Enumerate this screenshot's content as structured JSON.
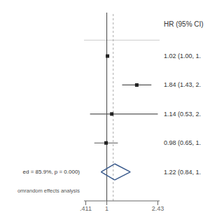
{
  "chart_data": {
    "type": "forest",
    "title": "HR (95% CI)",
    "studies": [
      {
        "value": 1.02,
        "low": 1.0,
        "high": 1.04,
        "label": "1.02 (1.00, 1."
      },
      {
        "value": 1.84,
        "low": 1.43,
        "high": 2.25,
        "label": "1.84 (1.43, 2."
      },
      {
        "value": 1.14,
        "low": 0.53,
        "high": 2.43,
        "label": "1.14 (0.53, 2."
      },
      {
        "value": 0.98,
        "low": 0.65,
        "high": 1.31,
        "label": "0.98 (0.65, 1."
      }
    ],
    "pooled": {
      "value": 1.22,
      "low": 0.84,
      "high": 1.66,
      "label": "1.22 (0.84, 1.",
      "color": "#3a5a8c"
    },
    "heterogeneity_text": "ed = 85.9%, p = 0.000)",
    "footer_text": "omrandom effects analysis",
    "xlim": [
      0.361,
      2.48
    ],
    "xticks": [
      {
        "value": 0.411,
        "label": ".411"
      },
      1,
      2.43
    ],
    "null_line": 1.0,
    "dashed_line": 1.18,
    "tick_labels": "x",
    "color": "#555555"
  }
}
